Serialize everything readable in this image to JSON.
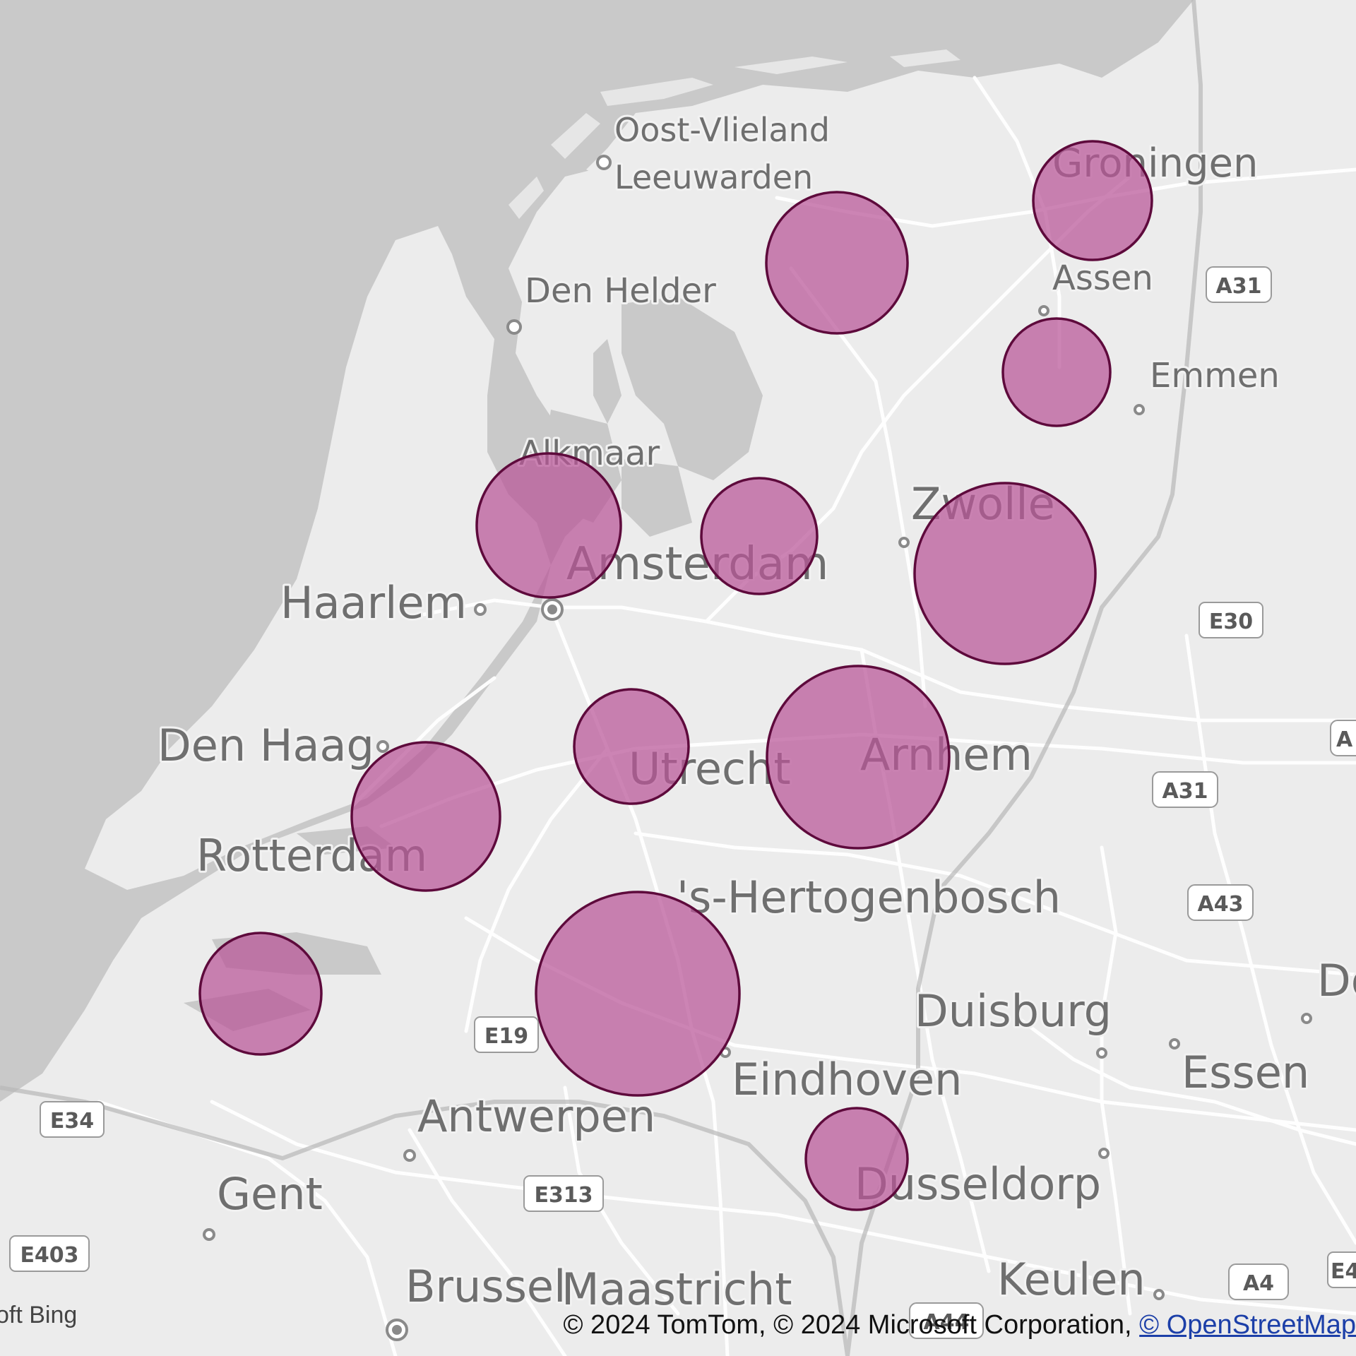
{
  "map": {
    "water_color": "#c9c9c9",
    "land_color": "#ececec",
    "road_color": "#ffffff",
    "bubble_fill": "#b85497",
    "bubble_stroke": "#5e0a3c"
  },
  "cities": {
    "oost_vlieland": "Oost-Vlieland",
    "leeuwarden": "Leeuwarden",
    "groningen": "Groningen",
    "den_helder": "Den Helder",
    "assen": "Assen",
    "emmen": "Emmen",
    "alkmaar": "Alkmaar",
    "zwolle": "Zwolle",
    "amsterdam": "Amsterdam",
    "haarlem": "Haarlem",
    "den_haag": "Den Haag",
    "utrecht": "Utrecht",
    "arnhem": "Arnhem",
    "rotterdam": "Rotterdam",
    "hertogenbosch": "'s-Hertogenbosch",
    "duisburg": "Duisburg",
    "essen": "Essen",
    "eindhoven": "Eindhoven",
    "antwerpen": "Antwerpen",
    "gent": "Gent",
    "dusseldorp": "Dusseldorp",
    "brussel": "Brussel",
    "maastricht": "Maastricht",
    "keulen": "Keulen",
    "dortmund_partial": "Do"
  },
  "roads": {
    "a31_north": "A31",
    "e30": "E30",
    "a31_south": "A31",
    "a43": "A43",
    "e19": "E19",
    "e34": "E34",
    "e313": "E313",
    "e403": "E403",
    "a4": "A4",
    "a44": "A44",
    "e4_partial": "E4",
    "a_partial": "A"
  },
  "bubbles": [
    {
      "id": "friesland",
      "size": 1.0
    },
    {
      "id": "groningen",
      "size": 0.84
    },
    {
      "id": "drenthe",
      "size": 0.76
    },
    {
      "id": "noord-holland",
      "size": 1.02
    },
    {
      "id": "flevoland",
      "size": 0.82
    },
    {
      "id": "overijssel",
      "size": 1.28
    },
    {
      "id": "utrecht",
      "size": 0.81
    },
    {
      "id": "gelderland",
      "size": 1.29
    },
    {
      "id": "zuid-holland",
      "size": 1.05
    },
    {
      "id": "zeeland",
      "size": 0.86
    },
    {
      "id": "noord-brabant",
      "size": 1.44
    },
    {
      "id": "limburg",
      "size": 0.72
    }
  ],
  "attribution": {
    "text": "© 2024 TomTom, © 2024 Microsoft Corporation, ",
    "link": "© OpenStreetMap"
  },
  "logo": "oft Bing"
}
